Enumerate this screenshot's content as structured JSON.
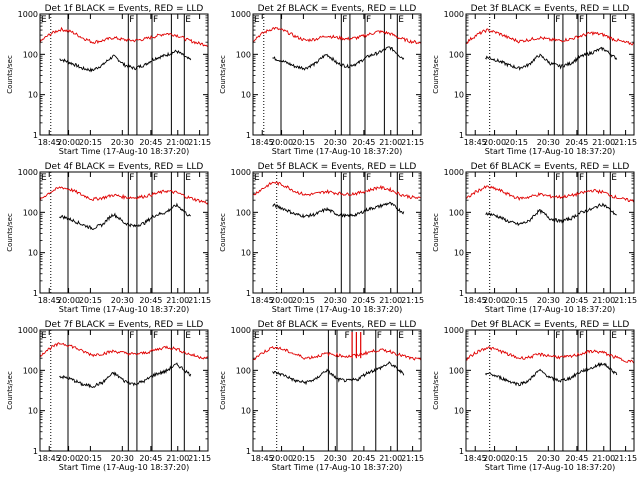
{
  "colors": {
    "events": "#000000",
    "lld": "#e00000",
    "axis": "#000000"
  },
  "common": {
    "xlabel": "Start Time (17-Aug-10 18:37:20)",
    "ylabel": "Counts/sec",
    "xtick_labels": [
      "18:45",
      "20:00",
      "20:15",
      "20:30",
      "20:45",
      "21:00",
      "21:15"
    ],
    "ytick_labels": [
      "1",
      "10",
      "100",
      "1000"
    ],
    "flag_labels": [
      "E",
      "F"
    ]
  },
  "chart_data": [
    {
      "type": "line",
      "title": "Det 1f BLACK = Events, RED = LLD",
      "xlabel": "Start Time (17-Aug-10 18:37:20)",
      "ylabel": "Counts/sec",
      "ylim": [
        1,
        1000
      ],
      "yscale": "log",
      "xlim_minutes_from_start": [
        0,
        156
      ],
      "series": [
        {
          "name": "Events",
          "color": "#000000",
          "values": [
            60,
            80,
            75,
            60,
            45,
            40,
            55,
            90,
            55,
            45,
            55,
            80,
            95,
            120,
            80,
            60,
            40
          ]
        },
        {
          "name": "LLD",
          "color": "#e00000",
          "values": [
            200,
            320,
            420,
            360,
            260,
            200,
            220,
            260,
            230,
            220,
            240,
            280,
            330,
            300,
            230,
            190,
            170
          ]
        }
      ],
      "markers_minutes": [
        10,
        26,
        82,
        90,
        104,
        122,
        134
      ],
      "flags": [
        {
          "minute": 0,
          "label": "E"
        },
        {
          "minute": 82,
          "label": "F"
        },
        {
          "minute": 104,
          "label": "F"
        },
        {
          "minute": 134,
          "label": "E"
        }
      ]
    },
    {
      "type": "line",
      "title": "Det 2f BLACK = Events, RED = LLD",
      "xlabel": "Start Time (17-Aug-10 18:37:20)",
      "ylabel": "Counts/sec",
      "ylim": [
        1,
        1000
      ],
      "yscale": "log",
      "xlim_minutes_from_start": [
        0,
        156
      ],
      "series": [
        {
          "name": "Events",
          "color": "#000000",
          "values": [
            60,
            85,
            80,
            65,
            50,
            45,
            60,
            100,
            60,
            50,
            60,
            90,
            110,
            150,
            90,
            60,
            30
          ]
        },
        {
          "name": "LLD",
          "color": "#e00000",
          "values": [
            220,
            340,
            450,
            380,
            280,
            220,
            240,
            290,
            260,
            240,
            260,
            310,
            370,
            330,
            250,
            210,
            190
          ]
        }
      ],
      "markers_minutes": [
        10,
        26,
        82,
        90,
        104,
        122,
        134
      ],
      "flags": [
        {
          "minute": 0,
          "label": "E"
        },
        {
          "minute": 82,
          "label": "F"
        },
        {
          "minute": 104,
          "label": "F"
        },
        {
          "minute": 134,
          "label": "E"
        }
      ]
    },
    {
      "type": "line",
      "title": "Det 3f BLACK = Events, RED = LLD",
      "xlabel": "Start Time (17-Aug-10 18:37:20)",
      "ylabel": "Counts/sec",
      "ylim": [
        1,
        1000
      ],
      "yscale": "log",
      "xlim_minutes_from_start": [
        0,
        156
      ],
      "series": [
        {
          "name": "Events",
          "color": "#000000",
          "values": [
            60,
            80,
            85,
            70,
            55,
            45,
            55,
            95,
            60,
            50,
            60,
            90,
            110,
            140,
            90,
            60,
            40
          ]
        },
        {
          "name": "LLD",
          "color": "#e00000",
          "values": [
            190,
            300,
            400,
            340,
            260,
            210,
            230,
            260,
            230,
            220,
            240,
            290,
            340,
            310,
            240,
            200,
            180
          ]
        }
      ],
      "markers_minutes": [
        22,
        82,
        90,
        104,
        112,
        134
      ],
      "flags": [
        {
          "minute": 82,
          "label": "F"
        },
        {
          "minute": 104,
          "label": "F"
        },
        {
          "minute": 134,
          "label": "E"
        }
      ]
    },
    {
      "type": "line",
      "title": "Det 4f BLACK = Events, RED = LLD",
      "xlabel": "Start Time (17-Aug-10 18:37:20)",
      "ylabel": "Counts/sec",
      "ylim": [
        1,
        1000
      ],
      "yscale": "log",
      "xlim_minutes_from_start": [
        0,
        156
      ],
      "series": [
        {
          "name": "Events",
          "color": "#000000",
          "values": [
            60,
            75,
            80,
            65,
            50,
            40,
            50,
            90,
            55,
            45,
            55,
            85,
            100,
            150,
            90,
            55,
            15
          ]
        },
        {
          "name": "LLD",
          "color": "#e00000",
          "values": [
            200,
            320,
            420,
            360,
            270,
            210,
            230,
            270,
            240,
            230,
            250,
            290,
            340,
            310,
            240,
            200,
            170
          ]
        }
      ],
      "markers_minutes": [
        10,
        26,
        82,
        90,
        104,
        122,
        134
      ],
      "flags": [
        {
          "minute": 0,
          "label": "E"
        },
        {
          "minute": 82,
          "label": "F"
        },
        {
          "minute": 104,
          "label": "F"
        },
        {
          "minute": 134,
          "label": "E"
        }
      ]
    },
    {
      "type": "line",
      "title": "Det 5f BLACK = Events, RED = LLD",
      "xlabel": "Start Time (17-Aug-10 18:37:20)",
      "ylabel": "Counts/sec",
      "ylim": [
        1,
        1000
      ],
      "yscale": "log",
      "xlim_minutes_from_start": [
        0,
        156
      ],
      "series": [
        {
          "name": "Events",
          "color": "#000000",
          "values": [
            80,
            110,
            150,
            120,
            90,
            80,
            90,
            120,
            90,
            80,
            90,
            120,
            140,
            170,
            110,
            80,
            60
          ]
        },
        {
          "name": "LLD",
          "color": "#e00000",
          "values": [
            260,
            400,
            560,
            460,
            330,
            270,
            290,
            330,
            300,
            280,
            300,
            350,
            420,
            370,
            280,
            240,
            220
          ]
        }
      ],
      "markers_minutes": [
        22,
        82,
        90,
        104,
        134
      ],
      "flags": [
        {
          "minute": 0,
          "label": "E"
        },
        {
          "minute": 82,
          "label": "F"
        },
        {
          "minute": 104,
          "label": "F"
        },
        {
          "minute": 134,
          "label": "E"
        }
      ]
    },
    {
      "type": "line",
      "title": "Det 6f BLACK = Events, RED = LLD",
      "xlabel": "Start Time (17-Aug-10 18:37:20)",
      "ylabel": "Counts/sec",
      "ylim": [
        1,
        1000
      ],
      "yscale": "log",
      "xlim_minutes_from_start": [
        0,
        156
      ],
      "series": [
        {
          "name": "Events",
          "color": "#000000",
          "values": [
            70,
            90,
            95,
            80,
            60,
            50,
            60,
            110,
            70,
            60,
            70,
            100,
            120,
            160,
            100,
            60,
            30
          ]
        },
        {
          "name": "LLD",
          "color": "#e00000",
          "values": [
            210,
            330,
            430,
            370,
            280,
            220,
            240,
            280,
            250,
            240,
            260,
            300,
            350,
            320,
            250,
            210,
            190
          ]
        }
      ],
      "markers_minutes": [
        22,
        82,
        90,
        104,
        112,
        134
      ],
      "flags": [
        {
          "minute": 82,
          "label": "F"
        },
        {
          "minute": 104,
          "label": "F"
        },
        {
          "minute": 134,
          "label": "E"
        }
      ]
    },
    {
      "type": "line",
      "title": "Det 7f BLACK = Events, RED = LLD",
      "xlabel": "Start Time (17-Aug-10 18:37:20)",
      "ylabel": "Counts/sec",
      "ylim": [
        1,
        1000
      ],
      "yscale": "log",
      "xlim_minutes_from_start": [
        0,
        156
      ],
      "series": [
        {
          "name": "Events",
          "color": "#000000",
          "values": [
            50,
            70,
            70,
            60,
            45,
            40,
            50,
            85,
            55,
            45,
            55,
            80,
            95,
            140,
            90,
            55,
            25
          ]
        },
        {
          "name": "LLD",
          "color": "#e00000",
          "values": [
            230,
            360,
            470,
            400,
            300,
            240,
            260,
            300,
            270,
            250,
            270,
            320,
            380,
            340,
            260,
            220,
            200
          ]
        }
      ],
      "markers_minutes": [
        10,
        26,
        82,
        90,
        104,
        122,
        134
      ],
      "flags": [
        {
          "minute": 0,
          "label": "E"
        },
        {
          "minute": 82,
          "label": "F"
        },
        {
          "minute": 104,
          "label": "F"
        },
        {
          "minute": 134,
          "label": "E"
        }
      ]
    },
    {
      "type": "line",
      "title": "Det 8f BLACK = Events, RED = LLD",
      "xlabel": "Start Time (17-Aug-10 18:37:20)",
      "ylabel": "Counts/sec",
      "ylim": [
        1,
        1000
      ],
      "yscale": "log",
      "xlim_minutes_from_start": [
        0,
        156
      ],
      "series": [
        {
          "name": "Events",
          "color": "#000000",
          "values": [
            60,
            85,
            90,
            75,
            55,
            50,
            60,
            100,
            60,
            55,
            60,
            90,
            110,
            150,
            95,
            60,
            40
          ]
        },
        {
          "name": "LLD",
          "color": "#e00000",
          "values": [
            180,
            280,
            380,
            320,
            250,
            200,
            220,
            260,
            240,
            220,
            240,
            280,
            320,
            300,
            240,
            200,
            180
          ]
        }
      ],
      "markers_minutes": [
        22,
        70,
        78,
        92,
        114,
        134
      ],
      "spikes_minutes": [
        92,
        96,
        100
      ],
      "flags": [
        {
          "minute": 0,
          "label": "E"
        },
        {
          "minute": 84,
          "label": "F"
        },
        {
          "minute": 114,
          "label": "F"
        },
        {
          "minute": 134,
          "label": "E"
        }
      ]
    },
    {
      "type": "line",
      "title": "Det 9f BLACK = Events, RED = LLD",
      "xlabel": "Start Time (17-Aug-10 18:37:20)",
      "ylabel": "Counts/sec",
      "ylim": [
        1,
        1000
      ],
      "yscale": "log",
      "xlim_minutes_from_start": [
        0,
        156
      ],
      "series": [
        {
          "name": "Events",
          "color": "#000000",
          "values": [
            60,
            80,
            85,
            70,
            55,
            45,
            55,
            100,
            65,
            55,
            65,
            95,
            115,
            150,
            95,
            60,
            35
          ]
        },
        {
          "name": "LLD",
          "color": "#e00000",
          "values": [
            180,
            280,
            370,
            320,
            250,
            200,
            210,
            250,
            230,
            210,
            220,
            260,
            300,
            280,
            220,
            180,
            160
          ]
        }
      ],
      "markers_minutes": [
        22,
        82,
        90,
        104,
        112,
        134
      ],
      "flags": [
        {
          "minute": 82,
          "label": "F"
        },
        {
          "minute": 104,
          "label": "F"
        },
        {
          "minute": 134,
          "label": "E"
        }
      ]
    }
  ]
}
